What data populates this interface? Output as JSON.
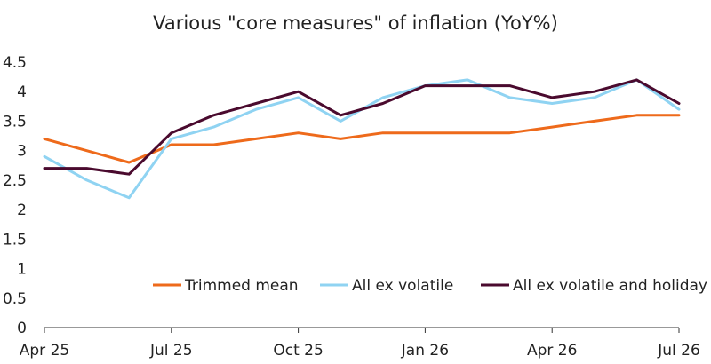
{
  "chart_data": {
    "type": "line",
    "title": "Various \"core measures\" of inflation (YoY%)",
    "xlabel": "",
    "ylabel": "",
    "x": [
      "2025-04",
      "2025-05",
      "2025-06",
      "2025-07",
      "2025-08",
      "2025-09",
      "2025-10",
      "2025-11",
      "2025-12",
      "2026-01",
      "2026-02",
      "2026-03",
      "2026-04",
      "2026-05",
      "2026-06",
      "2026-07"
    ],
    "x_tick_labels": [
      "Apr 25",
      "Jul 25",
      "Oct 25",
      "Jan 26",
      "Apr 26",
      "Jul 26"
    ],
    "y_tick_labels": [
      "0",
      "0.5",
      "1",
      "1.5",
      "2",
      "2.5",
      "3",
      "3.5",
      "4",
      "4.5"
    ],
    "ylim": [
      0,
      4.5
    ],
    "grid": false,
    "legend_position": "bottom-right",
    "series": [
      {
        "name": "Trimmed mean",
        "color": "#ee6a1b",
        "values": [
          3.2,
          3.0,
          2.8,
          3.1,
          3.1,
          3.2,
          3.3,
          3.2,
          3.3,
          3.3,
          3.3,
          3.3,
          3.4,
          3.5,
          3.6,
          3.6
        ]
      },
      {
        "name": "All ex volatile",
        "color": "#8fd3f2",
        "values": [
          2.9,
          2.5,
          2.2,
          3.2,
          3.4,
          3.7,
          3.9,
          3.5,
          3.9,
          4.1,
          4.2,
          3.9,
          3.8,
          3.9,
          4.2,
          3.7
        ]
      },
      {
        "name": "All ex volatile and holiday",
        "color": "#4a0a2e",
        "values": [
          2.7,
          2.7,
          2.6,
          3.3,
          3.6,
          3.8,
          4.0,
          3.6,
          3.8,
          4.1,
          4.1,
          4.1,
          3.9,
          4.0,
          4.2,
          3.8
        ]
      }
    ]
  }
}
